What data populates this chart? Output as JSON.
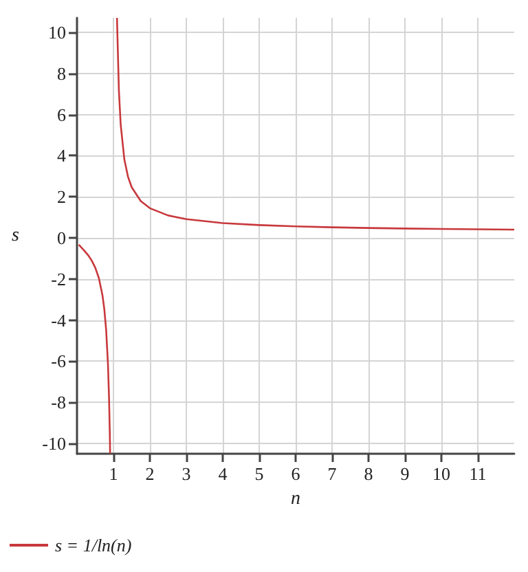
{
  "chart_data": {
    "type": "line",
    "xlabel": "n",
    "ylabel": "s",
    "x": [
      0.05,
      0.1,
      0.2,
      0.3,
      0.4,
      0.5,
      0.6,
      0.7,
      0.75,
      0.8,
      0.85,
      0.88,
      0.9,
      0.909,
      1,
      1.098,
      1.1,
      1.15,
      1.2,
      1.3,
      1.4,
      1.5,
      1.75,
      2,
      2.5,
      3,
      4,
      5,
      6,
      7,
      8,
      9,
      10,
      11,
      12
    ],
    "series": [
      {
        "name": "s = 1/ln(n)",
        "color": "#c8383c",
        "values": [
          -0.334,
          -0.434,
          -0.621,
          -0.831,
          -1.091,
          -1.443,
          -1.958,
          -2.804,
          -3.476,
          -4.481,
          -6.153,
          -7.823,
          -9.491,
          -10.48,
          null,
          10.7,
          10.49,
          7.155,
          5.485,
          3.811,
          2.972,
          2.466,
          1.787,
          1.443,
          1.091,
          0.91,
          0.721,
          0.621,
          0.558,
          0.514,
          0.481,
          0.455,
          0.434,
          0.417,
          0.402
        ]
      }
    ],
    "xlim": [
      0,
      12
    ],
    "xticks": [
      1,
      2,
      3,
      4,
      5,
      6,
      7,
      8,
      9,
      10,
      11
    ],
    "ylim": [
      -10.5,
      10.7
    ],
    "yticks": [
      -10,
      -8,
      -6,
      -4,
      -2,
      0,
      2,
      4,
      6,
      8,
      10
    ],
    "grid": true,
    "legend": "bottom left",
    "marker": "none",
    "line_style": "solid"
  }
}
